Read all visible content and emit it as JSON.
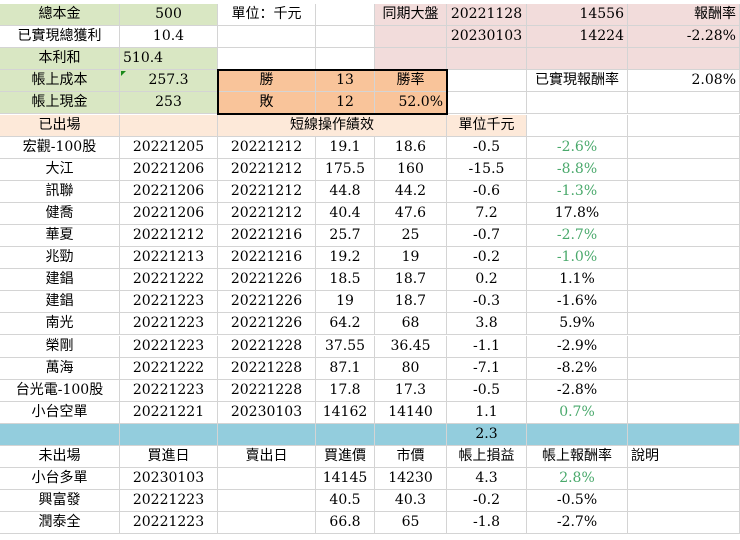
{
  "summary": {
    "total_capital_label": "總本金",
    "total_capital": "500",
    "unit_label": "單位：千元",
    "realized_profit_label": "已實現總獲利",
    "realized_profit": "10.4",
    "principal_sum_label": "本利和",
    "principal_sum": "510.4",
    "book_cost_label": "帳上成本",
    "book_cost": "257.3",
    "book_cash_label": "帳上現金",
    "book_cash": "253"
  },
  "market": {
    "label": "同期大盤",
    "date1": "20221128",
    "value1": "14556",
    "date2": "20230103",
    "value2": "14224",
    "return_label": "報酬率",
    "return": "-2.28%",
    "realized_return_label": "已實現報酬率",
    "realized_return": "2.08%"
  },
  "winloss": {
    "win_label": "勝",
    "win": "13",
    "win_rate_label": "勝率",
    "loss_label": "敗",
    "loss": "12",
    "win_rate": "52.0%"
  },
  "closed": {
    "header_label": "已出場",
    "title": "短線操作績效",
    "unit": "單位千元",
    "rows": [
      [
        "宏觀-100股",
        "20221205",
        "20221212",
        "19.1",
        "18.6",
        "-0.5",
        "-2.6%"
      ],
      [
        "大江",
        "20221206",
        "20221212",
        "175.5",
        "160",
        "-15.5",
        "-8.8%"
      ],
      [
        "訊聯",
        "20221206",
        "20221212",
        "44.8",
        "44.2",
        "-0.6",
        "-1.3%"
      ],
      [
        "健喬",
        "20221206",
        "20221212",
        "40.4",
        "47.6",
        "7.2",
        "17.8%"
      ],
      [
        "華夏",
        "20221212",
        "20221216",
        "25.7",
        "25",
        "-0.7",
        "-2.7%"
      ],
      [
        "兆勁",
        "20221213",
        "20221216",
        "19.2",
        "19",
        "-0.2",
        "-1.0%"
      ],
      [
        "建錩",
        "20221222",
        "20221226",
        "18.5",
        "18.7",
        "0.2",
        "1.1%"
      ],
      [
        "建錩",
        "20221223",
        "20221226",
        "19",
        "18.7",
        "-0.3",
        "-1.6%"
      ],
      [
        "南光",
        "20221223",
        "20221226",
        "64.2",
        "68",
        "3.8",
        "5.9%"
      ],
      [
        "榮剛",
        "20221223",
        "20221228",
        "37.55",
        "36.45",
        "-1.1",
        "-2.9%"
      ],
      [
        "萬海",
        "20221222",
        "20221228",
        "87.1",
        "80",
        "-7.1",
        "-8.2%"
      ],
      [
        "台光電-100股",
        "20221223",
        "20221228",
        "17.8",
        "17.3",
        "-0.5",
        "-2.8%"
      ],
      [
        "小台空單",
        "20221221",
        "20230103",
        "14162",
        "14140",
        "1.1",
        "0.7%"
      ]
    ],
    "total": "2.3"
  },
  "open": {
    "headers": [
      "未出場",
      "買進日",
      "賣出日",
      "買進價",
      "市價",
      "帳上損益",
      "帳上報酬率",
      "說明"
    ],
    "rows": [
      [
        "小台多單",
        "20230103",
        "",
        "14145",
        "14230",
        "4.3",
        "2.8%",
        ""
      ],
      [
        "興富發",
        "20221223",
        "",
        "40.5",
        "40.3",
        "-0.2",
        "-0.5%",
        ""
      ],
      [
        "潤泰全",
        "20221223",
        "",
        "66.8",
        "65",
        "-1.8",
        "-2.7%",
        ""
      ]
    ]
  },
  "colors": {
    "green_fill": "#d9e7c3",
    "pink_fill": "#f2dcdb",
    "orange_fill": "#f9c49a",
    "peach_fill": "#fde9d9",
    "teal_fill": "#93cddd",
    "positive_text": "#4aa96c"
  }
}
